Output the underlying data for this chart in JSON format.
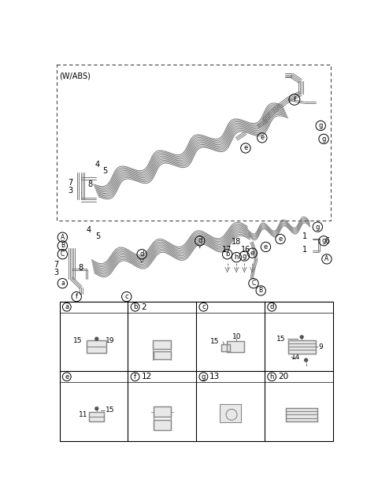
{
  "bg_color": "#ffffff",
  "line_color": "#555555",
  "text_color": "#000000",
  "border_color": "#000000",
  "dashed_box_label": "(W/ABS)",
  "table_cells_row0": [
    {
      "label": "a",
      "number": ""
    },
    {
      "label": "b",
      "number": "2"
    },
    {
      "label": "c",
      "number": ""
    },
    {
      "label": "d",
      "number": ""
    }
  ],
  "table_cells_row1": [
    {
      "label": "e",
      "number": ""
    },
    {
      "label": "f",
      "number": "12"
    },
    {
      "label": "g",
      "number": "13"
    },
    {
      "label": "h",
      "number": "20"
    }
  ]
}
